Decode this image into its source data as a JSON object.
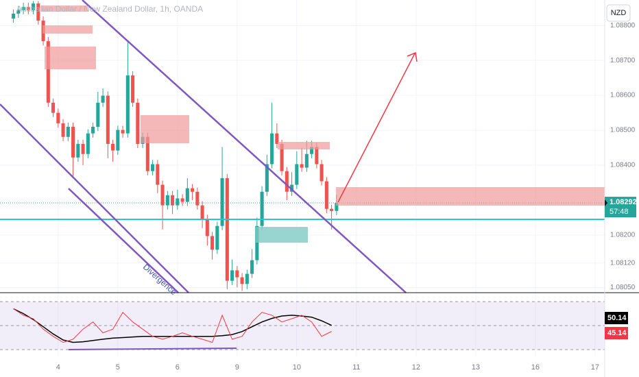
{
  "chart_data": [
    {
      "type": "candlestick",
      "title": "Australian Dollar / New Zealand Dollar, 1h, OANDA",
      "currency_button": "NZD",
      "annotation": "Divergence",
      "countdown": "57:48",
      "up_color": "#26a69a",
      "down_color": "#ef5350",
      "xlim": [
        0.6,
        243.9
      ],
      "xticks": [
        {
          "value": 24,
          "label": "4"
        },
        {
          "value": 48,
          "label": "5"
        },
        {
          "value": 72,
          "label": "6"
        },
        {
          "value": 96,
          "label": "9"
        },
        {
          "value": 120,
          "label": "10"
        },
        {
          "value": 144,
          "label": "11"
        },
        {
          "value": 168,
          "label": "12"
        },
        {
          "value": 192,
          "label": "13"
        },
        {
          "value": 216,
          "label": "16"
        },
        {
          "value": 240,
          "label": "17"
        }
      ],
      "ylim": [
        1.08035,
        1.08873
      ],
      "yticks": [
        {
          "value": 1.088,
          "label": "1.08800"
        },
        {
          "value": 1.087,
          "label": "1.08700"
        },
        {
          "value": 1.086,
          "label": "1.08600"
        },
        {
          "value": 1.085,
          "label": "1.08500"
        },
        {
          "value": 1.084,
          "label": "1.08400"
        },
        {
          "value": 1.082,
          "label": "1.08200"
        },
        {
          "value": 1.0812,
          "label": "1.08120"
        },
        {
          "value": 1.0805,
          "label": "1.08050"
        }
      ],
      "x": [
        6,
        8,
        10,
        12,
        14,
        16,
        18,
        20,
        22,
        24,
        26,
        28,
        30,
        32,
        34,
        36,
        38,
        40,
        42,
        44,
        46,
        48,
        50,
        52,
        54,
        56,
        58,
        60,
        62,
        64,
        66,
        68,
        70,
        72,
        74,
        76,
        78,
        80,
        82,
        84,
        86,
        88,
        90,
        92,
        94,
        96,
        98,
        100,
        102,
        104,
        106,
        108,
        110,
        112,
        114,
        116,
        118,
        120,
        122,
        124,
        126,
        128,
        130,
        132,
        134,
        136
      ],
      "open": [
        1.0882,
        1.08834,
        1.08844,
        1.08853,
        1.08844,
        1.08863,
        1.08814,
        1.08755,
        1.08579,
        1.0855,
        1.0852,
        1.08481,
        1.0851,
        1.08422,
        1.08461,
        1.08432,
        1.08491,
        1.0851,
        1.08579,
        1.08599,
        1.08461,
        1.08442,
        1.08501,
        1.08491,
        1.08657,
        1.08579,
        1.08461,
        1.08481,
        1.08383,
        1.08403,
        1.08344,
        1.08285,
        1.08314,
        1.08285,
        1.08305,
        1.08295,
        1.08334,
        1.08324,
        1.08285,
        1.08246,
        1.08197,
        1.08158,
        1.08226,
        1.08363,
        1.08069,
        1.08099,
        1.08079,
        1.0806,
        1.08089,
        1.08128,
        1.08226,
        1.08324,
        1.08403,
        1.08491,
        1.08461,
        1.08383,
        1.08324,
        1.08344,
        1.08403,
        1.08393,
        1.08432,
        1.08452,
        1.08403,
        1.08354,
        1.08275,
        1.08269
      ],
      "high": [
        1.08846,
        1.08856,
        1.08865,
        1.08865,
        1.0887,
        1.0887,
        1.08826,
        1.08767,
        1.08591,
        1.08562,
        1.08532,
        1.08522,
        1.08522,
        1.08473,
        1.08473,
        1.08503,
        1.08522,
        1.0861,
        1.0862,
        1.08611,
        1.08473,
        1.08513,
        1.08513,
        1.08755,
        1.08669,
        1.08591,
        1.08493,
        1.08493,
        1.08415,
        1.08415,
        1.08356,
        1.08326,
        1.08326,
        1.0833,
        1.08317,
        1.08363,
        1.08346,
        1.08336,
        1.08297,
        1.08258,
        1.08209,
        1.08238,
        1.08452,
        1.08375,
        1.0813,
        1.08111,
        1.08091,
        1.08101,
        1.0816,
        1.0825,
        1.0834,
        1.0843,
        1.08579,
        1.0852,
        1.08473,
        1.08395,
        1.0838,
        1.0844,
        1.0845,
        1.0847,
        1.0847,
        1.08464,
        1.08415,
        1.08366,
        1.08287,
        1.08315
      ],
      "low": [
        1.08808,
        1.08822,
        1.08832,
        1.08832,
        1.08832,
        1.08802,
        1.08743,
        1.08567,
        1.08538,
        1.08508,
        1.08469,
        1.08469,
        1.08365,
        1.0841,
        1.084,
        1.0842,
        1.08479,
        1.08498,
        1.08567,
        1.0842,
        1.0841,
        1.0843,
        1.08479,
        1.08479,
        1.08567,
        1.08449,
        1.08449,
        1.08371,
        1.08371,
        1.0832,
        1.08216,
        1.08273,
        1.0826,
        1.08273,
        1.08283,
        1.08283,
        1.083,
        1.08273,
        1.0822,
        1.0817,
        1.0813,
        1.08146,
        1.08214,
        1.08045,
        1.08057,
        1.0805,
        1.0804,
        1.08045,
        1.08077,
        1.08116,
        1.08214,
        1.08312,
        1.08391,
        1.08449,
        1.08371,
        1.083,
        1.08312,
        1.08332,
        1.08381,
        1.08381,
        1.0842,
        1.08391,
        1.08342,
        1.08263,
        1.08216,
        1.08257
      ],
      "close": [
        1.08834,
        1.08844,
        1.08853,
        1.08844,
        1.08863,
        1.08814,
        1.08755,
        1.08579,
        1.0855,
        1.0852,
        1.08481,
        1.0851,
        1.08422,
        1.08461,
        1.08432,
        1.08491,
        1.0851,
        1.08579,
        1.08599,
        1.08461,
        1.08442,
        1.08501,
        1.08491,
        1.08657,
        1.08579,
        1.08461,
        1.08481,
        1.08383,
        1.08403,
        1.08344,
        1.08285,
        1.08314,
        1.08285,
        1.08305,
        1.08295,
        1.08334,
        1.08324,
        1.08285,
        1.08246,
        1.08197,
        1.08158,
        1.08226,
        1.08363,
        1.08069,
        1.08099,
        1.08079,
        1.0806,
        1.08089,
        1.08128,
        1.08226,
        1.08324,
        1.08403,
        1.08491,
        1.08461,
        1.08383,
        1.08324,
        1.08344,
        1.08403,
        1.08393,
        1.08432,
        1.08452,
        1.08403,
        1.08354,
        1.08275,
        1.08269,
        1.08292
      ]
    },
    {
      "type": "line",
      "xlim": [
        0.6,
        243.9
      ],
      "ylim": [
        25.4,
        75.7
      ],
      "levels": [
        30,
        50,
        70
      ],
      "x": [
        6,
        10,
        14,
        18,
        22,
        26,
        30,
        34,
        38,
        42,
        46,
        50,
        54,
        58,
        62,
        66,
        70,
        74,
        78,
        82,
        86,
        90,
        94,
        98,
        102,
        106,
        110,
        114,
        118,
        122,
        126,
        130,
        134
      ],
      "series": [
        {
          "color": "#000000",
          "values": [
            64,
            60,
            55,
            49,
            43,
            38,
            36,
            36.5,
            37.5,
            38.6,
            39.5,
            40,
            40.5,
            41,
            41,
            41,
            41,
            41,
            41,
            41,
            41,
            41.5,
            42.5,
            45,
            49,
            53,
            56,
            58,
            58.6,
            58,
            57,
            54,
            50.14
          ]
        },
        {
          "color": "#f23645",
          "values": [
            64,
            58.6,
            55.7,
            47,
            41,
            36,
            38.6,
            47,
            53,
            44,
            47,
            61,
            53,
            47,
            41,
            38.6,
            41,
            44,
            41,
            38.6,
            36,
            58.6,
            38.6,
            41,
            53,
            61,
            58.6,
            53,
            55.7,
            58.6,
            53,
            41,
            45.14
          ]
        }
      ]
    }
  ]
}
